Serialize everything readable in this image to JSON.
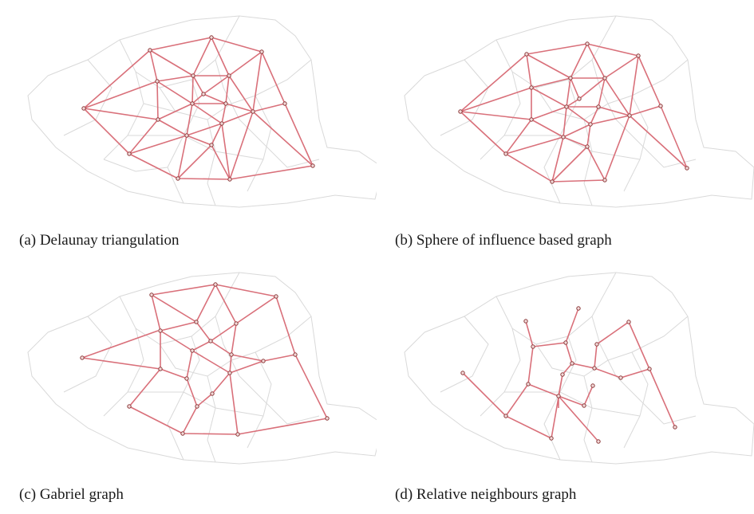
{
  "figure": {
    "panels": [
      {
        "id": "a",
        "caption": "(a) Delaunay triangulation"
      },
      {
        "id": "b",
        "caption": "(b) Sphere of influence based graph"
      },
      {
        "id": "c",
        "caption": "(c) Gabriel graph"
      },
      {
        "id": "d",
        "caption": "(d) Relative neighbours graph"
      }
    ],
    "colors": {
      "edge": "#d9707a",
      "node_stroke": "#8a3a3a",
      "node_fill": "#f4dada",
      "background_map": "#d9d9d9"
    }
  }
}
